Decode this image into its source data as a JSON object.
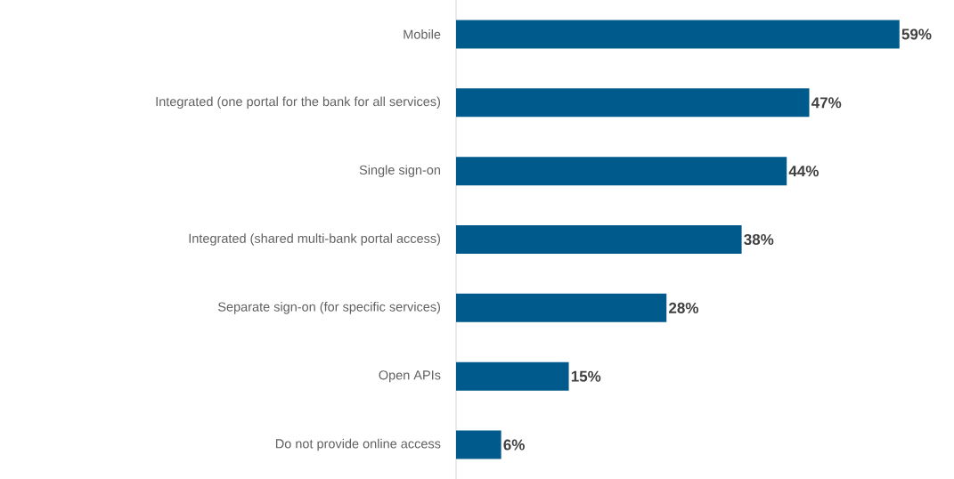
{
  "chart_data": {
    "type": "bar",
    "orientation": "horizontal",
    "categories": [
      "Mobile",
      "Integrated (one portal for the bank for all services)",
      "Single sign-on",
      "Integrated (shared multi-bank portal access)",
      "Separate sign-on (for specific services)",
      "Open APIs",
      "Do not provide online access"
    ],
    "values": [
      59,
      47,
      44,
      38,
      28,
      15,
      6
    ],
    "value_labels": [
      "59%",
      "47%",
      "44%",
      "38%",
      "28%",
      "15%",
      "6%"
    ],
    "color": "#005a8c"
  }
}
